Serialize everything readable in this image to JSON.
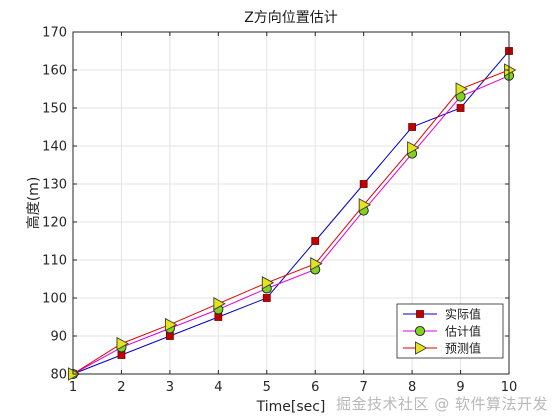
{
  "chart_data": {
    "type": "line",
    "title": "Z方向位置估计",
    "xlabel": "Time[sec]",
    "ylabel": "高度(m)",
    "xlim": [
      1,
      10
    ],
    "ylim": [
      80,
      170
    ],
    "xticks": [
      1,
      2,
      3,
      4,
      5,
      6,
      7,
      8,
      9,
      10
    ],
    "yticks": [
      80,
      90,
      100,
      110,
      120,
      130,
      140,
      150,
      160,
      170
    ],
    "grid": true,
    "legend_position": "bottom-right",
    "x": [
      1,
      2,
      3,
      4,
      5,
      6,
      7,
      8,
      9,
      10
    ],
    "series": [
      {
        "name": "实际值",
        "marker": "square",
        "line_color": "#0000c8",
        "marker_color": "#c00000",
        "values": [
          80,
          85,
          90,
          95,
          100,
          115,
          130,
          145,
          150,
          165
        ]
      },
      {
        "name": "估计值",
        "marker": "circle",
        "line_color": "#e000e0",
        "marker_color": "#7fd21f",
        "values": [
          80,
          87,
          92,
          97,
          102.5,
          107.5,
          123,
          138,
          153,
          158.5
        ]
      },
      {
        "name": "预测值",
        "marker": "triangle-right",
        "line_color": "#e00000",
        "marker_color": "#e4e41a",
        "values": [
          80,
          88,
          93,
          98.5,
          104,
          109,
          124.5,
          139.5,
          155,
          160
        ]
      }
    ]
  },
  "watermark": "掘金技术社区 @ 软件算法开发"
}
